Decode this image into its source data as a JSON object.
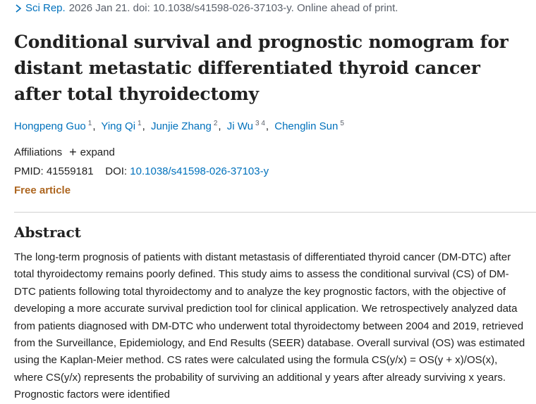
{
  "citation": {
    "journal": "Sci Rep.",
    "details": "2026 Jan 21. doi: 10.1038/s41598-026-37103-y. Online ahead of print."
  },
  "title": "Conditional survival and prognostic nomogram for distant metastatic differentiated thyroid cancer after total thyroidectomy",
  "authors": [
    {
      "name": "Hongpeng Guo",
      "aff": "1"
    },
    {
      "name": "Ying Qi",
      "aff": "1"
    },
    {
      "name": "Junjie Zhang",
      "aff": "2"
    },
    {
      "name": "Ji Wu",
      "aff": "3 4"
    },
    {
      "name": "Chenglin Sun",
      "aff": "5"
    }
  ],
  "affiliations": {
    "label": "Affiliations",
    "expand_label": "expand"
  },
  "ids": {
    "pmid_label": "PMID:",
    "pmid": "41559181",
    "doi_label": "DOI:",
    "doi": "10.1038/s41598-026-37103-y"
  },
  "free_article": "Free article",
  "abstract": {
    "heading": "Abstract",
    "text": "The long-term prognosis of patients with distant metastasis of differentiated thyroid cancer (DM-DTC) after total thyroidectomy remains poorly defined. This study aims to assess the conditional survival (CS) of DM-DTC patients following total thyroidectomy and to analyze the key prognostic factors, with the objective of developing a more accurate survival prediction tool for clinical application. We retrospectively analyzed data from patients diagnosed with DM-DTC who underwent total thyroidectomy between 2004 and 2019, retrieved from the Surveillance, Epidemiology, and End Results (SEER) database. Overall survival (OS) was estimated using the Kaplan-Meier method. CS rates were calculated using the formula CS(y/x) = OS(y + x)/OS(x), where CS(y/x) represents the probability of surviving an additional y years after already surviving x years. Prognostic factors were identified"
  },
  "colors": {
    "link": "#0071bc",
    "free_article": "#ad6620",
    "text": "#212121",
    "muted": "#5b616b"
  }
}
